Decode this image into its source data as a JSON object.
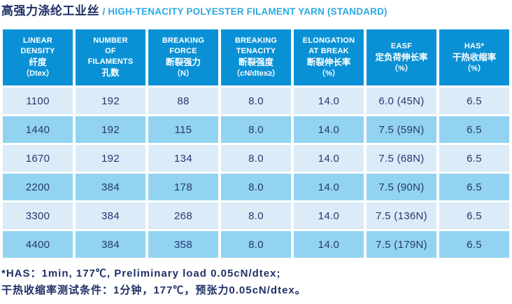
{
  "title": {
    "zh": "高强力涤纶工业丝",
    "en": "/ HIGH-TENACITY POLYESTER FILAMENT YARN (STANDARD)"
  },
  "table": {
    "headers": [
      {
        "lines": [
          "LINEAR",
          "DENSITY",
          "纤度",
          "（Dtex）"
        ]
      },
      {
        "lines": [
          "NUMBER",
          "OF",
          "FILAMENTS",
          "孔数"
        ]
      },
      {
        "lines": [
          "BREAKING",
          "FORCE",
          "断裂强力",
          "（N）"
        ]
      },
      {
        "lines": [
          "BREAKING",
          "TENACITY",
          "断裂强度",
          "（cN/dtex≥）"
        ]
      },
      {
        "lines": [
          "ELONGATION",
          "AT BREAK",
          "断裂伸长率",
          "（%）"
        ]
      },
      {
        "lines": [
          "EASF",
          "定负荷伸长率",
          "（%）"
        ]
      },
      {
        "lines": [
          "HAS*",
          "干热收缩率",
          "（%）"
        ]
      }
    ],
    "rows": [
      [
        "1100",
        "192",
        "88",
        "8.0",
        "14.0",
        "6.0 (45N)",
        "6.5"
      ],
      [
        "1440",
        "192",
        "115",
        "8.0",
        "14.0",
        "7.5 (59N)",
        "6.5"
      ],
      [
        "1670",
        "192",
        "134",
        "8.0",
        "14.0",
        "7.5 (68N)",
        "6.5"
      ],
      [
        "2200",
        "384",
        "178",
        "8.0",
        "14.0",
        "7.5 (90N)",
        "6.5"
      ],
      [
        "3300",
        "384",
        "268",
        "8.0",
        "14.0",
        "7.5 (136N)",
        "6.5"
      ],
      [
        "4400",
        "384",
        "358",
        "8.0",
        "14.0",
        "7.5 (179N)",
        "6.5"
      ]
    ]
  },
  "footnotes": {
    "line1": "*HAS：1min, 177℃, Preliminary load 0.05cN/dtex;",
    "line2": "干热收缩率测试条件：1分钟，177℃，预张力0.05cN/dtex。"
  },
  "colors": {
    "header_bg": "#0a91d5",
    "row_light": "#dcebf8",
    "row_dark": "#92d3f1",
    "text_navy": "#1f3066",
    "title_accent": "#2aaae2"
  }
}
